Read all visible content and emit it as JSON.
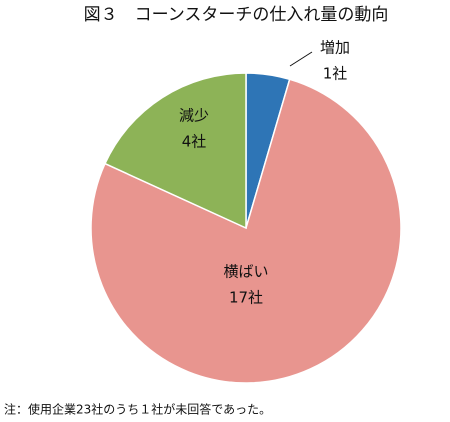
{
  "chart_data": {
    "type": "pie",
    "title": "図３　コーンスターチの仕入れ量の動向",
    "categories": [
      "増加",
      "横ばい",
      "減少"
    ],
    "values": [
      1,
      17,
      4
    ],
    "value_labels": [
      "1社",
      "17社",
      "4社"
    ],
    "colors": [
      "#2e75b6",
      "#e8958f",
      "#8db357"
    ],
    "note": "注：使用企業23社のうち１社が未回答であった。"
  }
}
